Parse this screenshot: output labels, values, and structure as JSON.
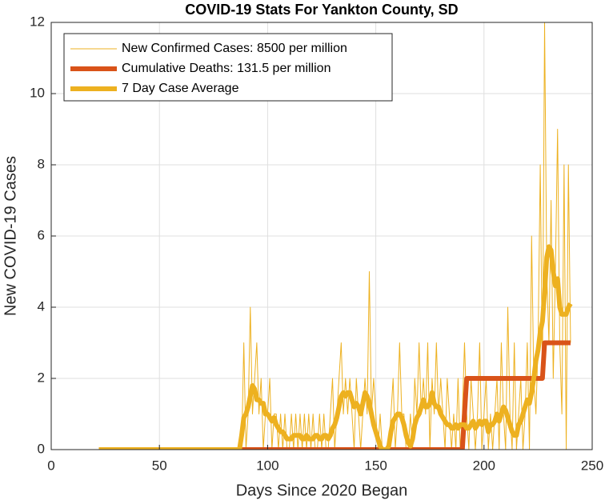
{
  "chart_data": {
    "type": "line",
    "title": "COVID-19 Stats For Yankton County, SD",
    "xlabel": "Days Since 2020 Began",
    "ylabel": "New COVID-19 Cases",
    "xlim": [
      0,
      250
    ],
    "xticks": [
      0,
      50,
      100,
      150,
      200,
      250
    ],
    "ylim": [
      0,
      12
    ],
    "yticks": [
      0,
      2,
      4,
      6,
      8,
      10,
      12
    ],
    "grid": true,
    "legend": "upper left",
    "x": [
      22,
      23,
      24,
      25,
      26,
      27,
      28,
      29,
      30,
      31,
      32,
      33,
      34,
      35,
      36,
      37,
      38,
      39,
      40,
      41,
      42,
      43,
      44,
      45,
      46,
      47,
      48,
      49,
      50,
      51,
      52,
      53,
      54,
      55,
      56,
      57,
      58,
      59,
      60,
      61,
      62,
      63,
      64,
      65,
      66,
      67,
      68,
      69,
      70,
      71,
      72,
      73,
      74,
      75,
      76,
      77,
      78,
      79,
      80,
      81,
      82,
      83,
      84,
      85,
      86,
      87,
      88,
      89,
      90,
      91,
      92,
      93,
      94,
      95,
      96,
      97,
      98,
      99,
      100,
      101,
      102,
      103,
      104,
      105,
      106,
      107,
      108,
      109,
      110,
      111,
      112,
      113,
      114,
      115,
      116,
      117,
      118,
      119,
      120,
      121,
      122,
      123,
      124,
      125,
      126,
      127,
      128,
      129,
      130,
      131,
      132,
      133,
      134,
      135,
      136,
      137,
      138,
      139,
      140,
      141,
      142,
      143,
      144,
      145,
      146,
      147,
      148,
      149,
      150,
      151,
      152,
      153,
      154,
      155,
      156,
      157,
      158,
      159,
      160,
      161,
      162,
      163,
      164,
      165,
      166,
      167,
      168,
      169,
      170,
      171,
      172,
      173,
      174,
      175,
      176,
      177,
      178,
      179,
      180,
      181,
      182,
      183,
      184,
      185,
      186,
      187,
      188,
      189,
      190,
      191,
      192,
      193,
      194,
      195,
      196,
      197,
      198,
      199,
      200,
      201,
      202,
      203,
      204,
      205,
      206,
      207,
      208,
      209,
      210,
      211,
      212,
      213,
      214,
      215,
      216,
      217,
      218,
      219,
      220,
      221,
      222,
      223,
      224,
      225,
      226,
      227,
      228,
      229,
      230,
      231,
      232,
      233,
      234,
      235,
      236,
      237,
      238,
      239,
      240
    ],
    "series": [
      {
        "name": "New Confirmed Cases: 8500 per million",
        "color": "#EDB120",
        "line_width": 1,
        "values": [
          0,
          0,
          0,
          0,
          0,
          0,
          0,
          0,
          0,
          0,
          0,
          0,
          0,
          0,
          0,
          0,
          0,
          0,
          0,
          0,
          0,
          0,
          0,
          0,
          0,
          0,
          0,
          0,
          0,
          0,
          0,
          0,
          0,
          0,
          0,
          0,
          0,
          0,
          0,
          0,
          0,
          0,
          0,
          0,
          0,
          0,
          0,
          0,
          0,
          0,
          0,
          0,
          0,
          0,
          0,
          0,
          0,
          0,
          0,
          0,
          0,
          0,
          0,
          0,
          0,
          0,
          0,
          3,
          0,
          1,
          4,
          1,
          2,
          3,
          1,
          2,
          0,
          1,
          1,
          2,
          0,
          1,
          1,
          0,
          1,
          0,
          1,
          0,
          0,
          1,
          0,
          1,
          0,
          1,
          0,
          1,
          0,
          1,
          0,
          1,
          0,
          0,
          1,
          0,
          1,
          0,
          0,
          1,
          2,
          0,
          1,
          2,
          3,
          1,
          2,
          1,
          2,
          1,
          0,
          2,
          1,
          0,
          1,
          2,
          1,
          5,
          1,
          2,
          1,
          0,
          1,
          0,
          0,
          0,
          0,
          1,
          2,
          0,
          1,
          3,
          1,
          1,
          0,
          0,
          1,
          0,
          2,
          1,
          3,
          1,
          2,
          1,
          3,
          0,
          2,
          1,
          3,
          1,
          2,
          1,
          0,
          2,
          1,
          0,
          1,
          0,
          2,
          0,
          1,
          3,
          1,
          0,
          2,
          1,
          0,
          1,
          3,
          0,
          1,
          2,
          0,
          1,
          0,
          1,
          2,
          0,
          3,
          1,
          0,
          4,
          1,
          0,
          3,
          0,
          1,
          2,
          0,
          1,
          3,
          0,
          6,
          2,
          1,
          3,
          8,
          2,
          12,
          5,
          3,
          7,
          2,
          5,
          9,
          3,
          1,
          8,
          0,
          8,
          3
        ]
      },
      {
        "name": "Cumulative Deaths: 131.5 per million",
        "color": "#D95319",
        "line_width": 6,
        "values": [
          0,
          0,
          0,
          0,
          0,
          0,
          0,
          0,
          0,
          0,
          0,
          0,
          0,
          0,
          0,
          0,
          0,
          0,
          0,
          0,
          0,
          0,
          0,
          0,
          0,
          0,
          0,
          0,
          0,
          0,
          0,
          0,
          0,
          0,
          0,
          0,
          0,
          0,
          0,
          0,
          0,
          0,
          0,
          0,
          0,
          0,
          0,
          0,
          0,
          0,
          0,
          0,
          0,
          0,
          0,
          0,
          0,
          0,
          0,
          0,
          0,
          0,
          0,
          0,
          0,
          0,
          0,
          0,
          0,
          0,
          0,
          0,
          0,
          0,
          0,
          0,
          0,
          0,
          0,
          0,
          0,
          0,
          0,
          0,
          0,
          0,
          0,
          0,
          0,
          0,
          0,
          0,
          0,
          0,
          0,
          0,
          0,
          0,
          0,
          0,
          0,
          0,
          0,
          0,
          0,
          0,
          0,
          0,
          0,
          0,
          0,
          0,
          0,
          0,
          0,
          0,
          0,
          0,
          0,
          0,
          0,
          0,
          0,
          0,
          0,
          0,
          0,
          0,
          0,
          0,
          0,
          0,
          0,
          0,
          0,
          0,
          0,
          0,
          0,
          0,
          0,
          0,
          0,
          0,
          0,
          0,
          0,
          0,
          0,
          0,
          0,
          0,
          0,
          0,
          0,
          0,
          0,
          0,
          0,
          0,
          0,
          0,
          0,
          0,
          0,
          0,
          0,
          0,
          0,
          1,
          2,
          2,
          2,
          2,
          2,
          2,
          2,
          2,
          2,
          2,
          2,
          2,
          2,
          2,
          2,
          2,
          2,
          2,
          2,
          2,
          2,
          2,
          2,
          2,
          2,
          2,
          2,
          2,
          2,
          2,
          2,
          2,
          2,
          2,
          2,
          2,
          3,
          3,
          3,
          3,
          3,
          3,
          3,
          3,
          3,
          3,
          3,
          3,
          3
        ]
      },
      {
        "name": "7 Day Case Average",
        "color": "#EDB120",
        "line_width": 6,
        "values": [
          0,
          0,
          0,
          0,
          0,
          0,
          0,
          0,
          0,
          0,
          0,
          0,
          0,
          0,
          0,
          0,
          0,
          0,
          0,
          0,
          0,
          0,
          0,
          0,
          0,
          0,
          0,
          0,
          0,
          0,
          0,
          0,
          0,
          0,
          0,
          0,
          0,
          0,
          0,
          0,
          0,
          0,
          0,
          0,
          0,
          0,
          0,
          0,
          0,
          0,
          0,
          0,
          0,
          0,
          0,
          0,
          0,
          0,
          0,
          0,
          0,
          0,
          0,
          0,
          0,
          0,
          0.4,
          0.9,
          1.0,
          1.2,
          1.5,
          1.8,
          1.7,
          1.4,
          1.4,
          1.3,
          1.3,
          1.0,
          1.0,
          0.9,
          0.8,
          0.9,
          0.7,
          0.6,
          0.5,
          0.5,
          0.4,
          0.3,
          0.3,
          0.3,
          0.4,
          0.4,
          0.4,
          0.4,
          0.3,
          0.3,
          0.4,
          0.3,
          0.3,
          0.3,
          0.4,
          0.4,
          0.3,
          0.3,
          0.4,
          0.4,
          0.3,
          0.4,
          0.6,
          0.7,
          0.9,
          1.2,
          1.5,
          1.6,
          1.5,
          1.6,
          1.6,
          1.4,
          1.2,
          1.3,
          1.2,
          1.0,
          1.3,
          1.6,
          1.5,
          1.3,
          1.0,
          0.7,
          0.5,
          0.3,
          0.1,
          0,
          0,
          0,
          0.1,
          0.5,
          0.8,
          0.9,
          1.0,
          1.0,
          0.9,
          0.7,
          0.4,
          0.2,
          0.1,
          0.3,
          0.7,
          0.9,
          1.0,
          1.2,
          1.4,
          1.2,
          1.2,
          1.3,
          1.6,
          1.3,
          1.2,
          1.2,
          1.0,
          0.9,
          0.8,
          0.7,
          0.7,
          0.6,
          0.6,
          0.7,
          0.6,
          0.7,
          0.7,
          0.7,
          0.6,
          0.6,
          0.7,
          0.8,
          0.6,
          0.7,
          0.8,
          0.7,
          0.8,
          0.8,
          0.5,
          0.7,
          0.7,
          0.8,
          1.0,
          0.8,
          1.0,
          1.2,
          1.1,
          0.9,
          0.7,
          0.5,
          0.4,
          0.4,
          0.7,
          0.8,
          1.0,
          1.2,
          1.4,
          1.3,
          1.6,
          2.0,
          2.5,
          2.8,
          3.3,
          3.6,
          4.4,
          5.4,
          5.7,
          5.6,
          5.0,
          4.6,
          4.8,
          4.0,
          3.8,
          3.8,
          3.8,
          4.0,
          4.1
        ]
      }
    ]
  }
}
